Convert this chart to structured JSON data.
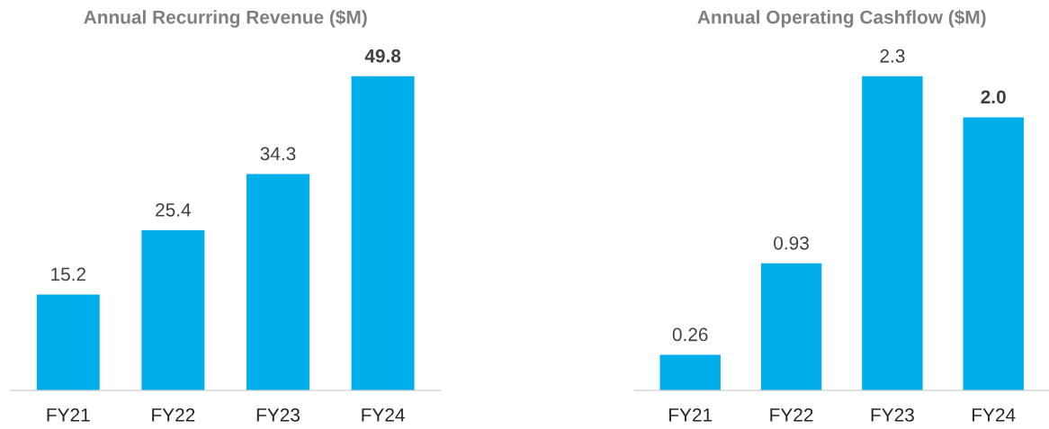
{
  "chart_data": [
    {
      "type": "bar",
      "title": "Annual Recurring Revenue ($M)",
      "categories": [
        "FY21",
        "FY22",
        "FY23",
        "FY24"
      ],
      "values": [
        15.2,
        25.4,
        34.3,
        49.8
      ],
      "color": "#00aeea",
      "data_labels": true,
      "grid": false,
      "legend": false
    },
    {
      "type": "bar",
      "title": "Annual Operating Cashflow ($M)",
      "categories": [
        "FY21",
        "FY22",
        "FY23",
        "FY24"
      ],
      "values": [
        0.26,
        0.93,
        2.3,
        2.0
      ],
      "value_labels": [
        "0.26",
        "0.93",
        "2.3",
        "2.0"
      ],
      "color": "#00aeea",
      "grid": false,
      "legend": false
    }
  ]
}
